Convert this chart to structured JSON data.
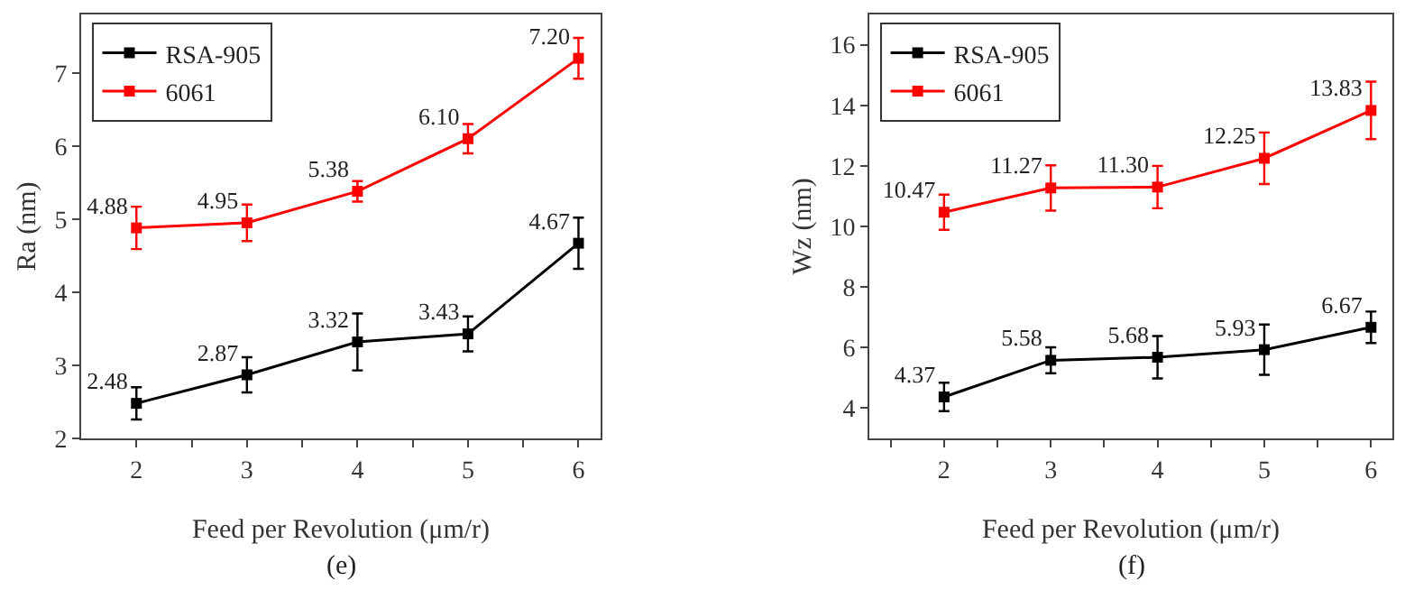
{
  "chart_data": [
    {
      "type": "line",
      "xlabel": "Feed per Revolution (μm/r)",
      "ylabel": "Ra (nm)",
      "annotations": [
        "(e)"
      ],
      "x": [
        2,
        3,
        4,
        5,
        6
      ],
      "xlim": [
        1.5,
        6.2
      ],
      "xticks": [
        2,
        {
          "value": 2.5,
          "label": null
        },
        3,
        {
          "value": 3.5,
          "label": null
        },
        4,
        {
          "value": 4.5,
          "label": null
        },
        5,
        {
          "value": 5.5,
          "label": null
        },
        6
      ],
      "ylim": [
        2,
        7.8
      ],
      "yticks": [
        2,
        3,
        4,
        5,
        6,
        7
      ],
      "legend": "top left",
      "marker": "square",
      "line_style": "solid",
      "grid": false,
      "series": [
        {
          "name": "RSA-905",
          "color": "#000000",
          "values": [
            2.48,
            2.87,
            3.32,
            3.43,
            4.67
          ],
          "value_labels": [
            "2.48",
            "2.87",
            "3.32",
            "3.43",
            "4.67"
          ],
          "errors": [
            0.22,
            0.24,
            0.39,
            0.24,
            0.35
          ]
        },
        {
          "name": "6061",
          "color": "#ff0000",
          "values": [
            4.88,
            4.95,
            5.38,
            6.1,
            7.2
          ],
          "value_labels": [
            "4.88",
            "4.95",
            "5.38",
            "6.10",
            "7.20"
          ],
          "errors": [
            0.29,
            0.25,
            0.14,
            0.2,
            0.28
          ]
        }
      ]
    },
    {
      "type": "line",
      "xlabel": "Feed per Revolution (μm/r)",
      "ylabel": "Wz (nm)",
      "annotations": [
        "(f)"
      ],
      "x": [
        2,
        3,
        4,
        5,
        6
      ],
      "xlim": [
        1.3,
        6.2
      ],
      "xticks": [
        {
          "value": 1.5,
          "label": null
        },
        2,
        {
          "value": 2.5,
          "label": null
        },
        3,
        {
          "value": 3.5,
          "label": null
        },
        4,
        {
          "value": 4.5,
          "label": null
        },
        5,
        {
          "value": 5.5,
          "label": null
        },
        6
      ],
      "ylim": [
        3,
        17
      ],
      "yticks": [
        4,
        6,
        8,
        10,
        12,
        14,
        16
      ],
      "legend": "top left",
      "marker": "square",
      "line_style": "solid",
      "grid": false,
      "series": [
        {
          "name": "RSA-905",
          "color": "#000000",
          "values": [
            4.37,
            5.58,
            5.68,
            5.93,
            6.67
          ],
          "value_labels": [
            "4.37",
            "5.58",
            "5.68",
            "5.93",
            "6.67"
          ],
          "errors": [
            0.47,
            0.43,
            0.7,
            0.83,
            0.52
          ]
        },
        {
          "name": "6061",
          "color": "#ff0000",
          "values": [
            10.47,
            11.27,
            11.3,
            12.25,
            13.83
          ],
          "value_labels": [
            "10.47",
            "11.27",
            "11.30",
            "12.25",
            "13.83"
          ],
          "errors": [
            0.58,
            0.75,
            0.7,
            0.85,
            0.95
          ]
        }
      ]
    }
  ]
}
